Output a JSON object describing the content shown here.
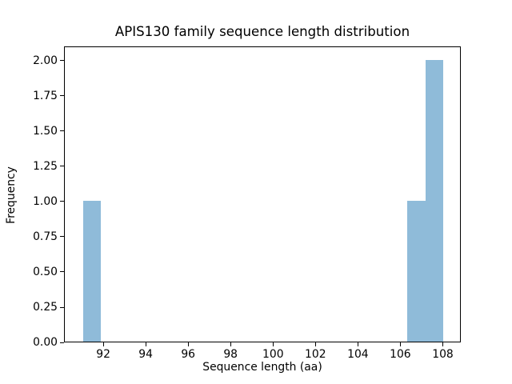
{
  "chart_data": {
    "type": "bar",
    "subtype": "histogram",
    "title": "APIS130 family sequence length distribution",
    "xlabel": "Sequence length (aa)",
    "ylabel": "Frequency",
    "xlim": [
      90.15,
      108.85
    ],
    "ylim": [
      0,
      2.1
    ],
    "grid": false,
    "legend": null,
    "bar_color": "#8fbbd9",
    "axis_color": "#000000",
    "background_color": "#ffffff",
    "bins": [
      {
        "x_start": 91.0,
        "x_end": 91.85,
        "frequency": 1
      },
      {
        "x_start": 106.3,
        "x_end": 107.15,
        "frequency": 1
      },
      {
        "x_start": 107.15,
        "x_end": 108.0,
        "frequency": 2
      }
    ],
    "xticks": [
      {
        "value": 92,
        "label": "92"
      },
      {
        "value": 94,
        "label": "94"
      },
      {
        "value": 96,
        "label": "96"
      },
      {
        "value": 98,
        "label": "98"
      },
      {
        "value": 100,
        "label": "100"
      },
      {
        "value": 102,
        "label": "102"
      },
      {
        "value": 104,
        "label": "104"
      },
      {
        "value": 106,
        "label": "106"
      },
      {
        "value": 108,
        "label": "108"
      }
    ],
    "yticks": [
      {
        "value": 0.0,
        "label": "0.00"
      },
      {
        "value": 0.25,
        "label": "0.25"
      },
      {
        "value": 0.5,
        "label": "0.50"
      },
      {
        "value": 0.75,
        "label": "0.75"
      },
      {
        "value": 1.0,
        "label": "1.00"
      },
      {
        "value": 1.25,
        "label": "1.25"
      },
      {
        "value": 1.5,
        "label": "1.50"
      },
      {
        "value": 1.75,
        "label": "1.75"
      },
      {
        "value": 2.0,
        "label": "2.00"
      }
    ]
  }
}
